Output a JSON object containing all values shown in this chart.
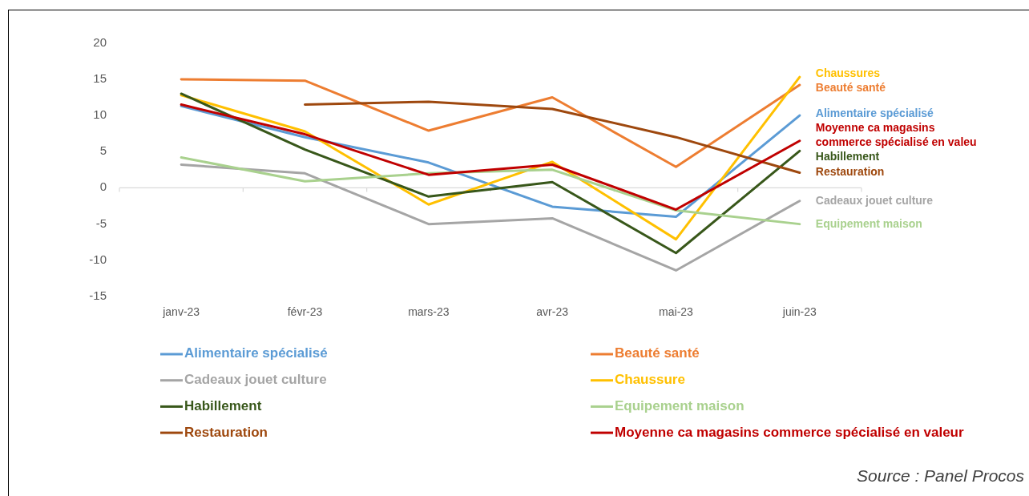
{
  "chart_data": {
    "type": "line",
    "categories": [
      "janv-23",
      "févr-23",
      "mars-23",
      "avr-23",
      "mai-23",
      "juin-23"
    ],
    "series": [
      {
        "name": "Alimentaire spécialisé",
        "color": "#5b9bd5",
        "values": [
          11.3,
          7.0,
          3.5,
          -2.6,
          -4.0,
          10.0
        ]
      },
      {
        "name": "Beauté santé",
        "color": "#ed7d31",
        "values": [
          15.0,
          14.8,
          7.9,
          12.5,
          2.9,
          14.2
        ]
      },
      {
        "name": "Cadeaux jouet culture",
        "color": "#a5a5a5",
        "values": [
          3.2,
          2.0,
          -5.0,
          -4.2,
          -11.4,
          -1.8
        ]
      },
      {
        "name": "Chaussure",
        "color": "#ffc000",
        "values": [
          12.8,
          7.8,
          -2.3,
          3.6,
          -7.1,
          15.3
        ]
      },
      {
        "name": "Habillement",
        "color": "#38571a",
        "values": [
          13.0,
          5.3,
          -1.2,
          0.8,
          -9.0,
          5.1
        ]
      },
      {
        "name": "Equipement maison",
        "color": "#a9d18e",
        "values": [
          4.2,
          0.9,
          2.0,
          2.5,
          -3.1,
          -5.0
        ]
      },
      {
        "name": "Restauration",
        "color": "#9e480e",
        "values": [
          null,
          11.5,
          11.9,
          10.9,
          7.0,
          2.1
        ]
      },
      {
        "name": "Moyenne ca magasins commerce spécialisé en valeur",
        "color": "#c00000",
        "values": [
          11.5,
          7.4,
          1.8,
          3.2,
          -3.0,
          6.5
        ]
      }
    ],
    "ylim": [
      -15,
      20
    ],
    "yticks": [
      -15,
      -10,
      -5,
      0,
      5,
      10,
      15,
      20
    ],
    "legend": "bottom",
    "annotations": [
      {
        "text": "Chaussures",
        "x": "juin-23",
        "y": 15.3
      },
      {
        "text": "Beauté santé",
        "x": "juin-23",
        "y": 14.2
      },
      {
        "text": "Alimentaire spécialisé",
        "x": "juin-23",
        "y": 10.0
      },
      {
        "text": "Moyenne ca magasins commerce spécialisé en valeu",
        "x": "juin-23",
        "y": 6.5
      },
      {
        "text": "Habillement",
        "x": "juin-23",
        "y": 5.1
      },
      {
        "text": "Restauration",
        "x": "juin-23",
        "y": 2.1
      },
      {
        "text": "Cadeaux jouet culture",
        "x": "juin-23",
        "y": -1.8
      },
      {
        "text": "Equipement maison",
        "x": "juin-23",
        "y": -5.0
      },
      "Source : Panel Procos"
    ]
  }
}
